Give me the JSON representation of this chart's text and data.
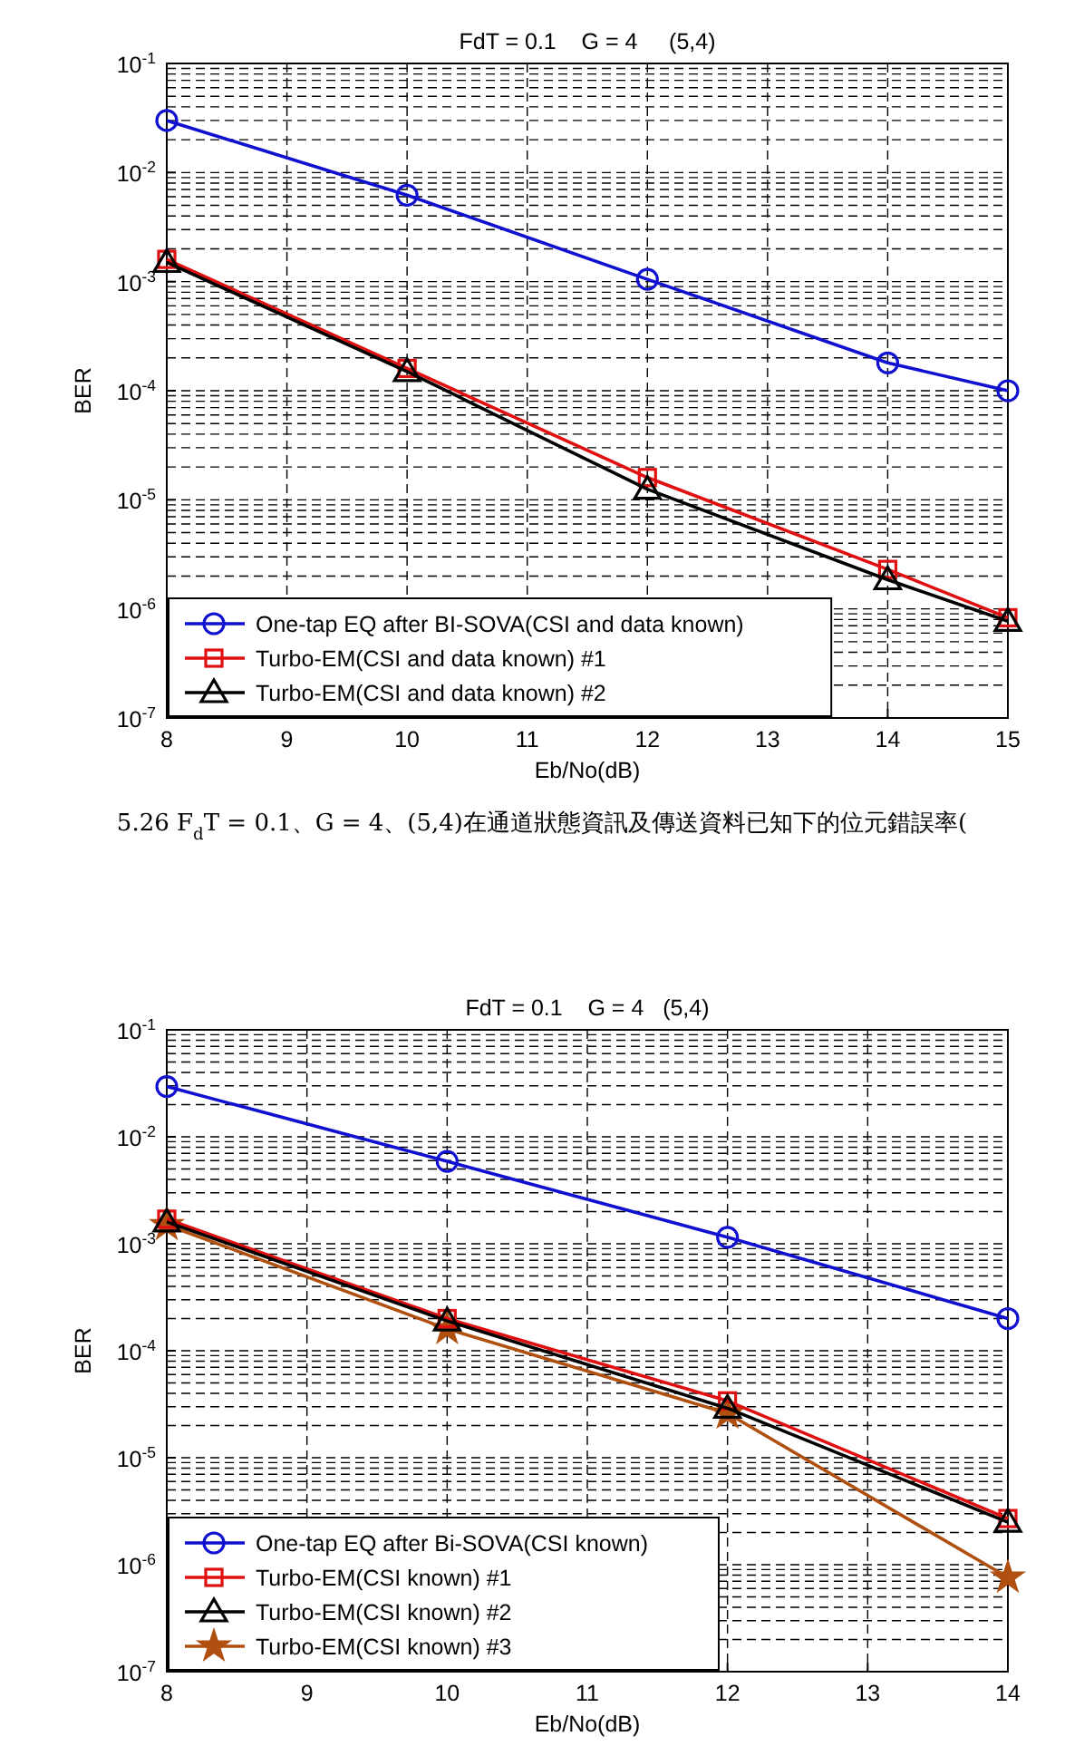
{
  "chart_data": [
    {
      "type": "line",
      "title": "FdT = 0.1    G = 4     (5,4)",
      "xlabel": "Eb/No(dB)",
      "ylabel": "BER",
      "log": "y",
      "grid": true,
      "legend": "bottom left",
      "xlim": [
        8,
        15
      ],
      "xticks": [
        8,
        9,
        10,
        11,
        12,
        13,
        14,
        15
      ],
      "ylim": [
        1e-07,
        0.1
      ],
      "yticks": [
        {
          "value": 1e-07,
          "label": "10$^{-7}$"
        },
        {
          "value": 1e-06,
          "label": "10$^{-6}$"
        },
        {
          "value": 1e-05,
          "label": "10$^{-5}$"
        },
        {
          "value": 0.0001,
          "label": "10$^{-4}$"
        },
        {
          "value": 0.001,
          "label": "10$^{-3}$"
        },
        {
          "value": 0.01,
          "label": "10$^{-2}$"
        },
        {
          "value": 0.1,
          "label": "10$^{-1}$"
        }
      ],
      "x": [
        8,
        10,
        12,
        14,
        15
      ],
      "series": [
        {
          "name": "One-tap EQ after BI-SOVA(CSI and data known)",
          "color": "#1010d0",
          "marker": "circle",
          "values": [
            0.03,
            0.0062,
            0.00105,
            0.00018,
            0.0001
          ]
        },
        {
          "name": "Turbo-EM(CSI and data known) #1",
          "color": "#e01010",
          "marker": "square",
          "values": [
            0.0016,
            0.00016,
            1.6e-05,
            2.3e-06,
            8.3e-07
          ]
        },
        {
          "name": "Turbo-EM(CSI and data known) #2",
          "color": "#000000",
          "marker": "triangle",
          "values": [
            0.0015,
            0.00015,
            1.25e-05,
            1.85e-06,
            7.7e-07
          ]
        }
      ],
      "annotations": [
        "5.26 F$_{d}$T = 0.1、G = 4、(5,4)在通道狀態資訊及傳送資料已知下的位元錯誤率("
      ]
    },
    {
      "type": "line",
      "title": "FdT = 0.1    G = 4   (5,4)",
      "xlabel": "Eb/No(dB)",
      "ylabel": "BER",
      "log": "y",
      "grid": true,
      "legend": "bottom left",
      "xlim": [
        8,
        14
      ],
      "xticks": [
        8,
        9,
        10,
        11,
        12,
        13,
        14
      ],
      "ylim": [
        1e-07,
        0.1
      ],
      "yticks": [
        {
          "value": 1e-07,
          "label": "10$^{-7}$"
        },
        {
          "value": 1e-06,
          "label": "10$^{-6}$"
        },
        {
          "value": 1e-05,
          "label": "10$^{-5}$"
        },
        {
          "value": 0.0001,
          "label": "10$^{-4}$"
        },
        {
          "value": 0.001,
          "label": "10$^{-3}$"
        },
        {
          "value": 0.01,
          "label": "10$^{-2}$"
        },
        {
          "value": 0.1,
          "label": "10$^{-1}$"
        }
      ],
      "x": [
        8,
        10,
        12,
        14
      ],
      "series": [
        {
          "name": "One-tap EQ after Bi-SOVA(CSI known)",
          "color": "#1010d0",
          "marker": "circle",
          "values": [
            0.0295,
            0.0059,
            0.00115,
            0.0002
          ]
        },
        {
          "name": "Turbo-EM(CSI known) #1",
          "color": "#e01010",
          "marker": "square",
          "values": [
            0.0017,
            0.0002,
            3.4e-05,
            2.7e-06
          ]
        },
        {
          "name": "Turbo-EM(CSI known) #2",
          "color": "#000000",
          "marker": "triangle",
          "values": [
            0.0016,
            0.00019,
            2.9e-05,
            2.5e-06
          ]
        },
        {
          "name": "Turbo-EM(CSI known) #3",
          "color": "#b05010",
          "marker": "star",
          "values": [
            0.0015,
            0.00016,
            2.6e-05,
            7.6e-07
          ]
        }
      ]
    }
  ]
}
